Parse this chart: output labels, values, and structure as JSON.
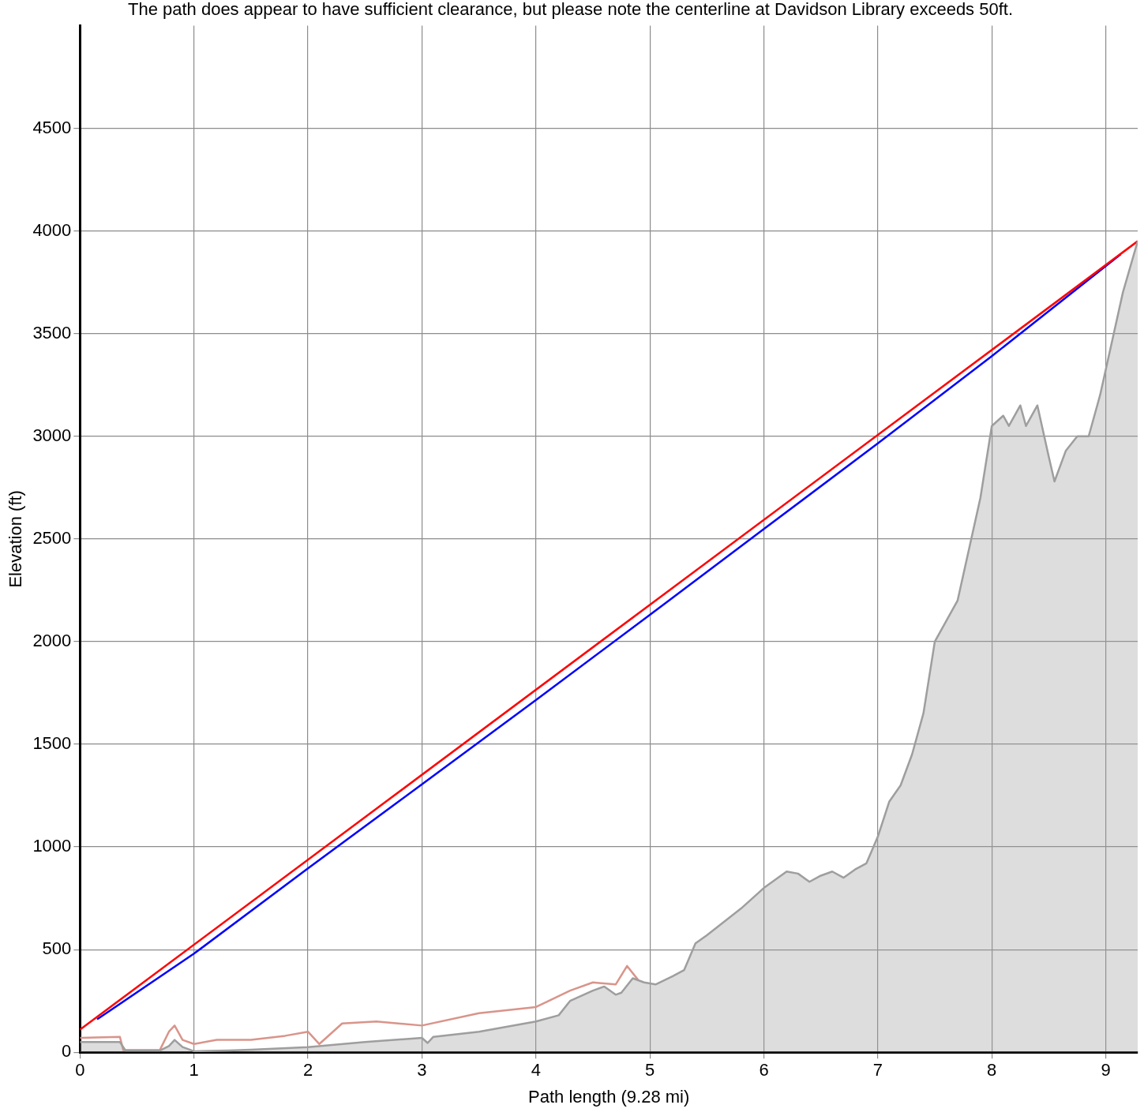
{
  "chart_data": {
    "type": "line",
    "title": "The path does appear to have sufficient clearance, but please note the centerline at Davidson Library exceeds 50ft.",
    "xlabel": "Path length (9.28 mi)",
    "ylabel": "Elevation (ft)",
    "xlim": [
      0,
      9.28
    ],
    "xticks": [
      0,
      1,
      2,
      3,
      4,
      5,
      6,
      7,
      8,
      9
    ],
    "ylim": [
      0,
      5000
    ],
    "yticks": [
      0,
      500,
      1000,
      1500,
      2000,
      2500,
      3000,
      3500,
      4000,
      4500
    ],
    "grid": true,
    "legend": false,
    "marker": "none",
    "series": [
      {
        "type": "area",
        "color": "#9e9e9e",
        "x": [
          0,
          0.35,
          0.4,
          0.7,
          0.78,
          0.83,
          0.9,
          1.0,
          1.3,
          1.5,
          2.0,
          2.5,
          3.0,
          3.05,
          3.1,
          3.5,
          4.0,
          4.2,
          4.3,
          4.5,
          4.6,
          4.7,
          4.75,
          4.85,
          4.95,
          5.05,
          5.2,
          5.3,
          5.4,
          5.5,
          5.8,
          6.0,
          6.2,
          6.3,
          6.4,
          6.5,
          6.6,
          6.7,
          6.8,
          6.9,
          7.0,
          7.1,
          7.2,
          7.3,
          7.4,
          7.5,
          7.6,
          7.7,
          7.8,
          7.9,
          8.0,
          8.1,
          8.15,
          8.25,
          8.3,
          8.4,
          8.5,
          8.55,
          8.65,
          8.75,
          8.85,
          8.95,
          9.05,
          9.15,
          9.28
        ],
        "values": [
          50,
          50,
          8,
          8,
          30,
          60,
          25,
          5,
          8,
          12,
          25,
          50,
          70,
          45,
          75,
          100,
          150,
          180,
          250,
          300,
          320,
          280,
          290,
          360,
          340,
          330,
          370,
          400,
          530,
          570,
          700,
          800,
          880,
          870,
          830,
          860,
          880,
          850,
          890,
          920,
          1050,
          1220,
          1300,
          1450,
          1650,
          2000,
          2100,
          2200,
          2450,
          2700,
          3050,
          3100,
          3050,
          3150,
          3050,
          3150,
          2900,
          2780,
          2930,
          3000,
          3000,
          3200,
          3450,
          3700,
          3950
        ]
      },
      {
        "type": "line",
        "color": "#d9948a",
        "x": [
          0,
          0.35,
          0.38,
          0.7,
          0.78,
          0.83,
          0.9,
          1.0,
          1.2,
          1.5,
          1.8,
          2.0,
          2.1,
          2.3,
          2.6,
          3.0,
          3.5,
          4.0,
          4.3,
          4.5,
          4.7,
          4.8,
          4.9
        ],
        "values": [
          70,
          75,
          10,
          10,
          100,
          130,
          60,
          40,
          60,
          60,
          80,
          100,
          40,
          140,
          150,
          130,
          190,
          220,
          300,
          340,
          330,
          420,
          350
        ]
      },
      {
        "type": "line",
        "color": "#ff0000",
        "x": [
          0,
          9.28
        ],
        "values": [
          110,
          3950
        ]
      },
      {
        "type": "line",
        "color": "#0000ff",
        "x": [
          0.15,
          1,
          2,
          3,
          4,
          5,
          6,
          7,
          8,
          9.13
        ],
        "values": [
          160,
          480,
          895,
          1305,
          1715,
          2130,
          2548,
          2965,
          3390,
          3886
        ]
      }
    ]
  }
}
